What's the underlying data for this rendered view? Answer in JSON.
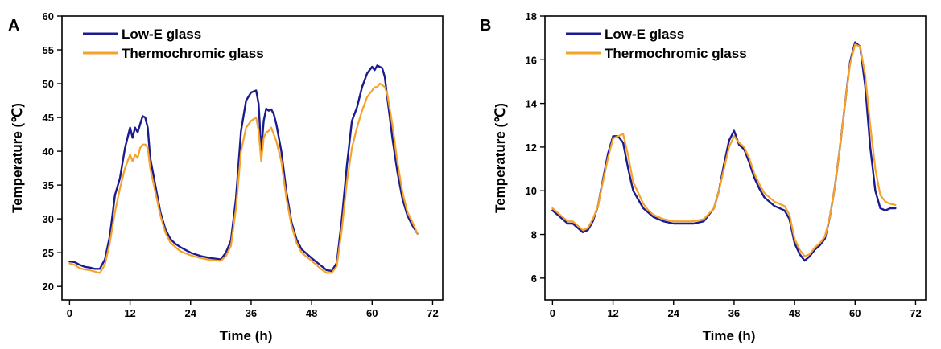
{
  "chart_data": [
    {
      "panel": "A",
      "type": "line",
      "xlabel": "Time (h)",
      "ylabel": "Temperature (℃)",
      "xlim": [
        -1.5,
        74
      ],
      "ylim": [
        18,
        60
      ],
      "xticks": [
        0,
        12,
        24,
        36,
        48,
        60,
        72
      ],
      "yticks": [
        20,
        25,
        30,
        35,
        40,
        45,
        50,
        55,
        60
      ],
      "grid": false,
      "legend_position": "top-left",
      "series": [
        {
          "name": "Low-E glass",
          "color": "#1b1b8f",
          "x": [
            0,
            1,
            2,
            3,
            4,
            5,
            6,
            7,
            8,
            9,
            10,
            11,
            12,
            12.5,
            13,
            13.5,
            14,
            14.5,
            15,
            15.5,
            16,
            17,
            18,
            19,
            20,
            21,
            22,
            24,
            26,
            28,
            30,
            31,
            32,
            33,
            34,
            35,
            36,
            37,
            37.5,
            38,
            38.5,
            39,
            39.5,
            40,
            40.5,
            41,
            42,
            43,
            44,
            45,
            46,
            48,
            50,
            51,
            52,
            53,
            54,
            55,
            56,
            57,
            58,
            59,
            60,
            60.5,
            61,
            61.5,
            62,
            62.5,
            63,
            64,
            65,
            66,
            67,
            68,
            69
          ],
          "y": [
            23.7,
            23.6,
            23.2,
            22.9,
            22.8,
            22.6,
            22.6,
            24.0,
            27.5,
            33.5,
            36.0,
            40.5,
            43.5,
            42.0,
            43.5,
            42.8,
            44.0,
            45.2,
            45.0,
            43.5,
            39.0,
            35.0,
            31.0,
            28.5,
            27.0,
            26.3,
            25.8,
            25.0,
            24.5,
            24.2,
            24.0,
            25.0,
            26.8,
            33.0,
            43.0,
            47.5,
            48.7,
            49.0,
            47.0,
            40.0,
            44.5,
            46.3,
            46.0,
            46.2,
            45.5,
            44.0,
            40.0,
            34.0,
            29.5,
            27.0,
            25.5,
            24.2,
            23.0,
            22.4,
            22.3,
            23.5,
            30.0,
            38.0,
            44.5,
            46.5,
            49.5,
            51.5,
            52.5,
            52.0,
            52.7,
            52.5,
            52.3,
            51.0,
            48.0,
            42.0,
            37.0,
            33.0,
            30.5,
            29.0,
            27.8
          ]
        },
        {
          "name": "Thermochromic glass",
          "color": "#f5a22a",
          "x": [
            0,
            1,
            2,
            3,
            4,
            5,
            6,
            7,
            8,
            9,
            10,
            11,
            12,
            12.5,
            13,
            13.5,
            14,
            14.5,
            15,
            15.5,
            16,
            17,
            18,
            19,
            20,
            21,
            22,
            24,
            26,
            28,
            30,
            31,
            32,
            33,
            34,
            35,
            36,
            37,
            37.5,
            38,
            38.5,
            39,
            39.5,
            40,
            40.5,
            41,
            42,
            43,
            44,
            45,
            46,
            48,
            50,
            51,
            52,
            53,
            54,
            55,
            56,
            57,
            58,
            59,
            60,
            60.5,
            61,
            61.5,
            62,
            62.5,
            63,
            64,
            65,
            66,
            67,
            68,
            69
          ],
          "y": [
            23.4,
            23.2,
            22.7,
            22.5,
            22.4,
            22.2,
            22.0,
            23.2,
            26.5,
            31.0,
            34.5,
            37.5,
            39.5,
            38.5,
            39.5,
            39.0,
            40.5,
            41.0,
            41.0,
            40.5,
            37.5,
            34.0,
            30.5,
            28.0,
            26.5,
            25.8,
            25.2,
            24.6,
            24.2,
            23.9,
            23.8,
            24.5,
            26.0,
            31.5,
            40.0,
            43.5,
            44.5,
            45.0,
            43.0,
            38.5,
            42.0,
            42.8,
            43.0,
            43.5,
            42.5,
            41.5,
            38.5,
            33.0,
            29.0,
            26.5,
            25.0,
            23.8,
            22.5,
            22.0,
            22.0,
            23.0,
            28.5,
            35.5,
            40.5,
            43.5,
            46.0,
            48.0,
            49.0,
            49.5,
            49.5,
            50.0,
            49.8,
            49.5,
            48.5,
            44.0,
            38.5,
            34.0,
            31.0,
            29.5,
            27.8
          ]
        }
      ]
    },
    {
      "panel": "B",
      "type": "line",
      "xlabel": "Time (h)",
      "ylabel": "Temperature (℃)",
      "xlim": [
        -1.5,
        74
      ],
      "ylim": [
        5,
        18
      ],
      "xticks": [
        0,
        12,
        24,
        36,
        48,
        60,
        72
      ],
      "yticks": [
        6,
        8,
        10,
        12,
        14,
        16,
        18
      ],
      "grid": false,
      "legend_position": "top-left",
      "series": [
        {
          "name": "Low-E glass",
          "color": "#1b1b8f",
          "x": [
            0,
            1,
            2,
            3,
            4,
            5,
            6,
            7,
            8,
            9,
            10,
            11,
            12,
            13,
            14,
            15,
            16,
            17,
            18,
            19,
            20,
            22,
            24,
            26,
            28,
            30,
            32,
            33,
            34,
            35,
            36,
            37,
            38,
            39,
            40,
            41,
            42,
            44,
            46,
            47,
            48,
            49,
            50,
            51,
            52,
            53,
            54,
            55,
            56,
            57,
            58,
            59,
            60,
            61,
            62,
            63,
            64,
            65,
            66,
            67,
            68
          ],
          "y": [
            9.1,
            8.9,
            8.7,
            8.5,
            8.5,
            8.3,
            8.1,
            8.2,
            8.6,
            9.3,
            10.5,
            11.7,
            12.5,
            12.5,
            12.2,
            11.0,
            10.0,
            9.6,
            9.2,
            9.0,
            8.8,
            8.6,
            8.5,
            8.5,
            8.5,
            8.6,
            9.2,
            10.0,
            11.2,
            12.3,
            12.75,
            12.1,
            11.9,
            11.3,
            10.6,
            10.1,
            9.7,
            9.3,
            9.1,
            8.7,
            7.6,
            7.1,
            6.8,
            7.0,
            7.3,
            7.5,
            7.8,
            8.8,
            10.2,
            12.0,
            14.0,
            15.9,
            16.8,
            16.6,
            14.8,
            12.0,
            10.0,
            9.2,
            9.1,
            9.2,
            9.2
          ]
        },
        {
          "name": "Thermochromic glass",
          "color": "#f5a22a",
          "x": [
            0,
            1,
            2,
            3,
            4,
            5,
            6,
            7,
            8,
            9,
            10,
            11,
            12,
            13,
            14,
            15,
            16,
            17,
            18,
            19,
            20,
            22,
            24,
            26,
            28,
            30,
            32,
            33,
            34,
            35,
            36,
            37,
            38,
            39,
            40,
            41,
            42,
            44,
            46,
            47,
            48,
            49,
            50,
            51,
            52,
            53,
            54,
            55,
            56,
            57,
            58,
            59,
            60,
            61,
            62,
            63,
            64,
            65,
            66,
            67,
            68
          ],
          "y": [
            9.2,
            9.0,
            8.8,
            8.6,
            8.6,
            8.4,
            8.2,
            8.3,
            8.7,
            9.3,
            10.4,
            11.5,
            12.4,
            12.5,
            12.6,
            11.6,
            10.4,
            9.9,
            9.4,
            9.1,
            8.9,
            8.7,
            8.6,
            8.6,
            8.6,
            8.7,
            9.2,
            10.0,
            11.0,
            12.0,
            12.5,
            12.2,
            12.0,
            11.5,
            10.8,
            10.3,
            9.9,
            9.5,
            9.3,
            8.9,
            7.8,
            7.3,
            7.0,
            7.1,
            7.4,
            7.6,
            7.9,
            8.8,
            10.2,
            12.0,
            14.0,
            15.8,
            16.7,
            16.6,
            15.3,
            13.0,
            11.0,
            9.8,
            9.5,
            9.4,
            9.35
          ]
        }
      ]
    }
  ]
}
